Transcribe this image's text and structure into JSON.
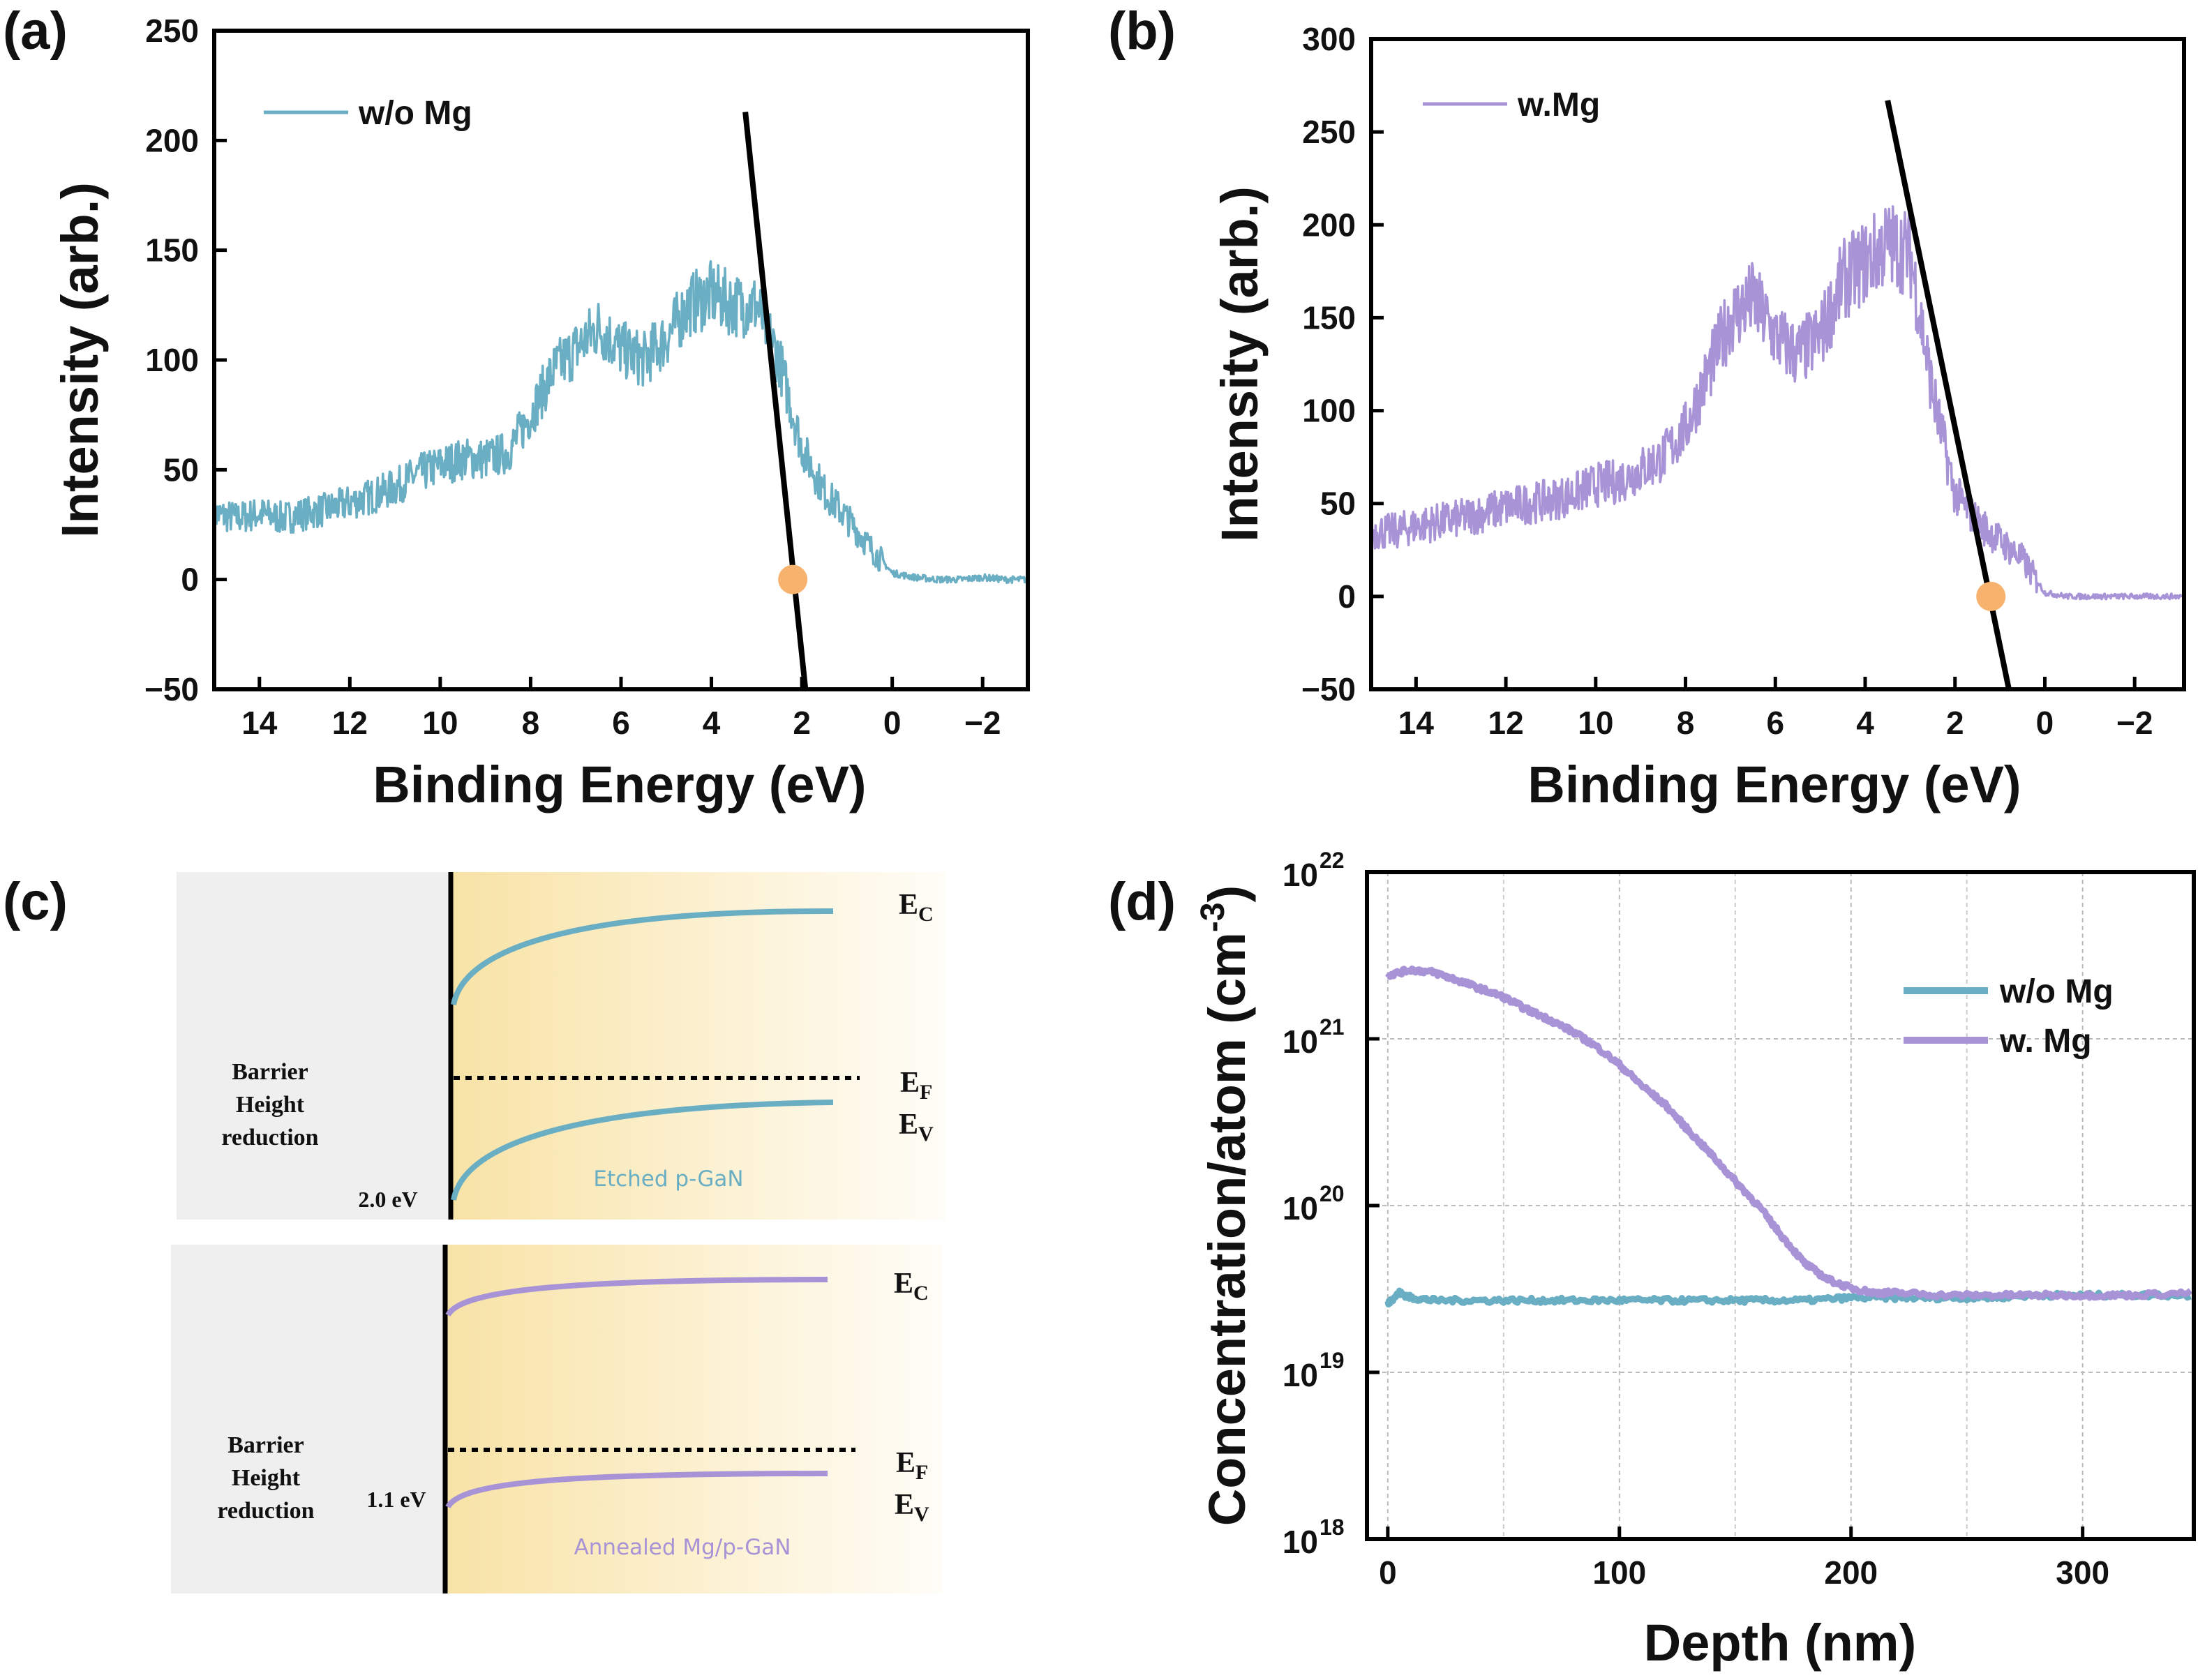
{
  "colors": {
    "blue": "#6aaec4",
    "purple": "#a793d6",
    "fit_line": "#000000",
    "marker": "#f7b26e"
  },
  "chart_data": [
    {
      "id": "a",
      "panel_label": "(a)",
      "type": "line",
      "xlabel": "Binding Energy (eV)",
      "ylabel": "Intensity (arb.)",
      "xlim": [
        15,
        -3
      ],
      "ylim": [
        -50,
        250
      ],
      "xticks": [
        14,
        12,
        10,
        8,
        6,
        4,
        2,
        0,
        -2
      ],
      "xtick_labels": [
        "14",
        "12",
        "10",
        "8",
        "6",
        "4",
        "2",
        "0",
        "−2"
      ],
      "yticks": [
        -50,
        0,
        50,
        100,
        150,
        200,
        250
      ],
      "ytick_labels": [
        "−50",
        "0",
        "50",
        "100",
        "150",
        "200",
        "250"
      ],
      "legend": "top-left",
      "series": [
        {
          "name": "w/o Mg",
          "color": "#6aaec4",
          "x": [
            15,
            14.5,
            14,
            13.5,
            13,
            12.5,
            12,
            11.5,
            11,
            10.5,
            10,
            9.5,
            9,
            8.5,
            8,
            7.5,
            7,
            6.5,
            6,
            5.5,
            5,
            4.5,
            4,
            3.5,
            3,
            2.5,
            2,
            1.5,
            1,
            0.5,
            0,
            -0.5,
            -1,
            -1.5,
            -2,
            -2.5,
            -3
          ],
          "y": [
            30,
            28,
            30,
            28,
            30,
            32,
            35,
            38,
            42,
            48,
            52,
            55,
            55,
            58,
            75,
            95,
            105,
            115,
            105,
            100,
            110,
            125,
            130,
            125,
            125,
            100,
            60,
            40,
            28,
            15,
            3,
            1,
            0,
            0,
            1,
            0,
            0
          ]
        }
      ],
      "fit_line": {
        "x": [
          3.25,
          1.92
        ],
        "y": [
          213,
          -50
        ]
      },
      "intercept_marker": {
        "x": 2.2,
        "y": 0
      }
    },
    {
      "id": "b",
      "panel_label": "(b)",
      "type": "line",
      "xlabel": "Binding Energy (eV)",
      "ylabel": "Intensity (arb.)",
      "xlim": [
        15,
        -3.1
      ],
      "ylim": [
        -50,
        300
      ],
      "xticks": [
        14,
        12,
        10,
        8,
        6,
        4,
        2,
        0,
        -2
      ],
      "xtick_labels": [
        "14",
        "12",
        "10",
        "8",
        "6",
        "4",
        "2",
        "0",
        "−2"
      ],
      "yticks": [
        -50,
        0,
        50,
        100,
        150,
        200,
        250,
        300
      ],
      "ytick_labels": [
        "−50",
        "0",
        "50",
        "100",
        "150",
        "200",
        "250",
        "300"
      ],
      "legend": "top-left",
      "series": [
        {
          "name": "w.Mg",
          "color": "#a793d6",
          "x": [
            15,
            14.5,
            14,
            13.5,
            13,
            12.5,
            12,
            11.5,
            11,
            10.5,
            10,
            9.5,
            9,
            8.5,
            8,
            7.5,
            7,
            6.5,
            6,
            5.5,
            5,
            4.5,
            4,
            3.5,
            3,
            2.5,
            2,
            1.5,
            1,
            0.5,
            0,
            -0.5,
            -1,
            -1.5,
            -2,
            -2.5,
            -3.1
          ],
          "y": [
            35,
            35,
            38,
            40,
            42,
            45,
            48,
            50,
            52,
            55,
            60,
            62,
            68,
            75,
            90,
            120,
            150,
            160,
            140,
            130,
            140,
            170,
            180,
            190,
            185,
            110,
            55,
            40,
            30,
            20,
            2,
            0,
            0,
            0,
            0,
            0,
            0
          ]
        }
      ],
      "fit_line": {
        "x": [
          3.5,
          0.8
        ],
        "y": [
          267,
          -50
        ]
      },
      "intercept_marker": {
        "x": 1.2,
        "y": 0
      }
    },
    {
      "id": "d",
      "panel_label": "(d)",
      "type": "line",
      "xlabel": "Depth (nm)",
      "ylabel": "Concentration/atom (cm",
      "ylabel_sup": "-3",
      "ylabel_end": ")",
      "yscale": "log",
      "xlim": [
        -9,
        348
      ],
      "ylim": [
        1e+18,
        1e+22
      ],
      "grid": true,
      "xticks": [
        0,
        100,
        200,
        300
      ],
      "xtick_labels": [
        "0",
        "100",
        "200",
        "300"
      ],
      "yticks": [
        1e+18,
        1e+19,
        1e+20,
        1e+21,
        1e+22
      ],
      "ytick_labels": [
        {
          "base": "10",
          "exp": "18"
        },
        {
          "base": "10",
          "exp": "19"
        },
        {
          "base": "10",
          "exp": "20"
        },
        {
          "base": "10",
          "exp": "21"
        },
        {
          "base": "10",
          "exp": "22"
        }
      ],
      "legend": "top-right",
      "series": [
        {
          "name": "w/o Mg",
          "color": "#6aaec4",
          "x": [
            0,
            5,
            10,
            20,
            40,
            60,
            80,
            100,
            120,
            140,
            160,
            180,
            200,
            220,
            240,
            260,
            280,
            300,
            320,
            348
          ],
          "y": [
            2.6e+19,
            3e+19,
            2.8e+19,
            2.7e+19,
            2.7e+19,
            2.7e+19,
            2.7e+19,
            2.7e+19,
            2.7e+19,
            2.7e+19,
            2.7e+19,
            2.7e+19,
            2.8e+19,
            2.8e+19,
            2.8e+19,
            2.8e+19,
            2.9e+19,
            2.9e+19,
            2.9e+19,
            2.9e+19
          ]
        },
        {
          "name": "w.   Mg",
          "color": "#a793d6",
          "x": [
            0,
            10,
            20,
            30,
            40,
            50,
            60,
            70,
            80,
            90,
            100,
            110,
            120,
            130,
            140,
            150,
            160,
            170,
            180,
            190,
            200,
            210,
            220,
            240,
            260,
            280,
            300,
            320,
            348
          ],
          "y": [
            2.4e+21,
            2.6e+21,
            2.5e+21,
            2.25e+21,
            2e+21,
            1.78e+21,
            1.5e+21,
            1.3e+21,
            1.1e+21,
            9e+20,
            7e+20,
            5.2e+20,
            4e+20,
            2.8e+20,
            2e+20,
            1.4e+20,
            1e+20,
            6.6e+19,
            4.5e+19,
            3.6e+19,
            3.2e+19,
            3e+19,
            3e+19,
            2.9e+19,
            2.9e+19,
            2.9e+19,
            2.9e+19,
            2.9e+19,
            3e+19
          ]
        }
      ]
    }
  ],
  "diagram": {
    "panel_label": "(c)",
    "top": {
      "ec": "E",
      "ec_sub": "C",
      "ef": "E",
      "ef_sub": "F",
      "ev": "E",
      "ev_sub": "V",
      "barrier_lines": [
        "Barrier",
        "Height",
        "reduction"
      ],
      "barrier_value": "2.0 eV",
      "material": "Etched p-GaN"
    },
    "bottom": {
      "ec": "E",
      "ec_sub": "C",
      "ef": "E",
      "ef_sub": "F",
      "ev": "E",
      "ev_sub": "V",
      "barrier_lines": [
        "Barrier",
        "Height",
        "reduction"
      ],
      "barrier_value": "1.1 eV",
      "material": "Annealed Mg/p-GaN"
    }
  }
}
